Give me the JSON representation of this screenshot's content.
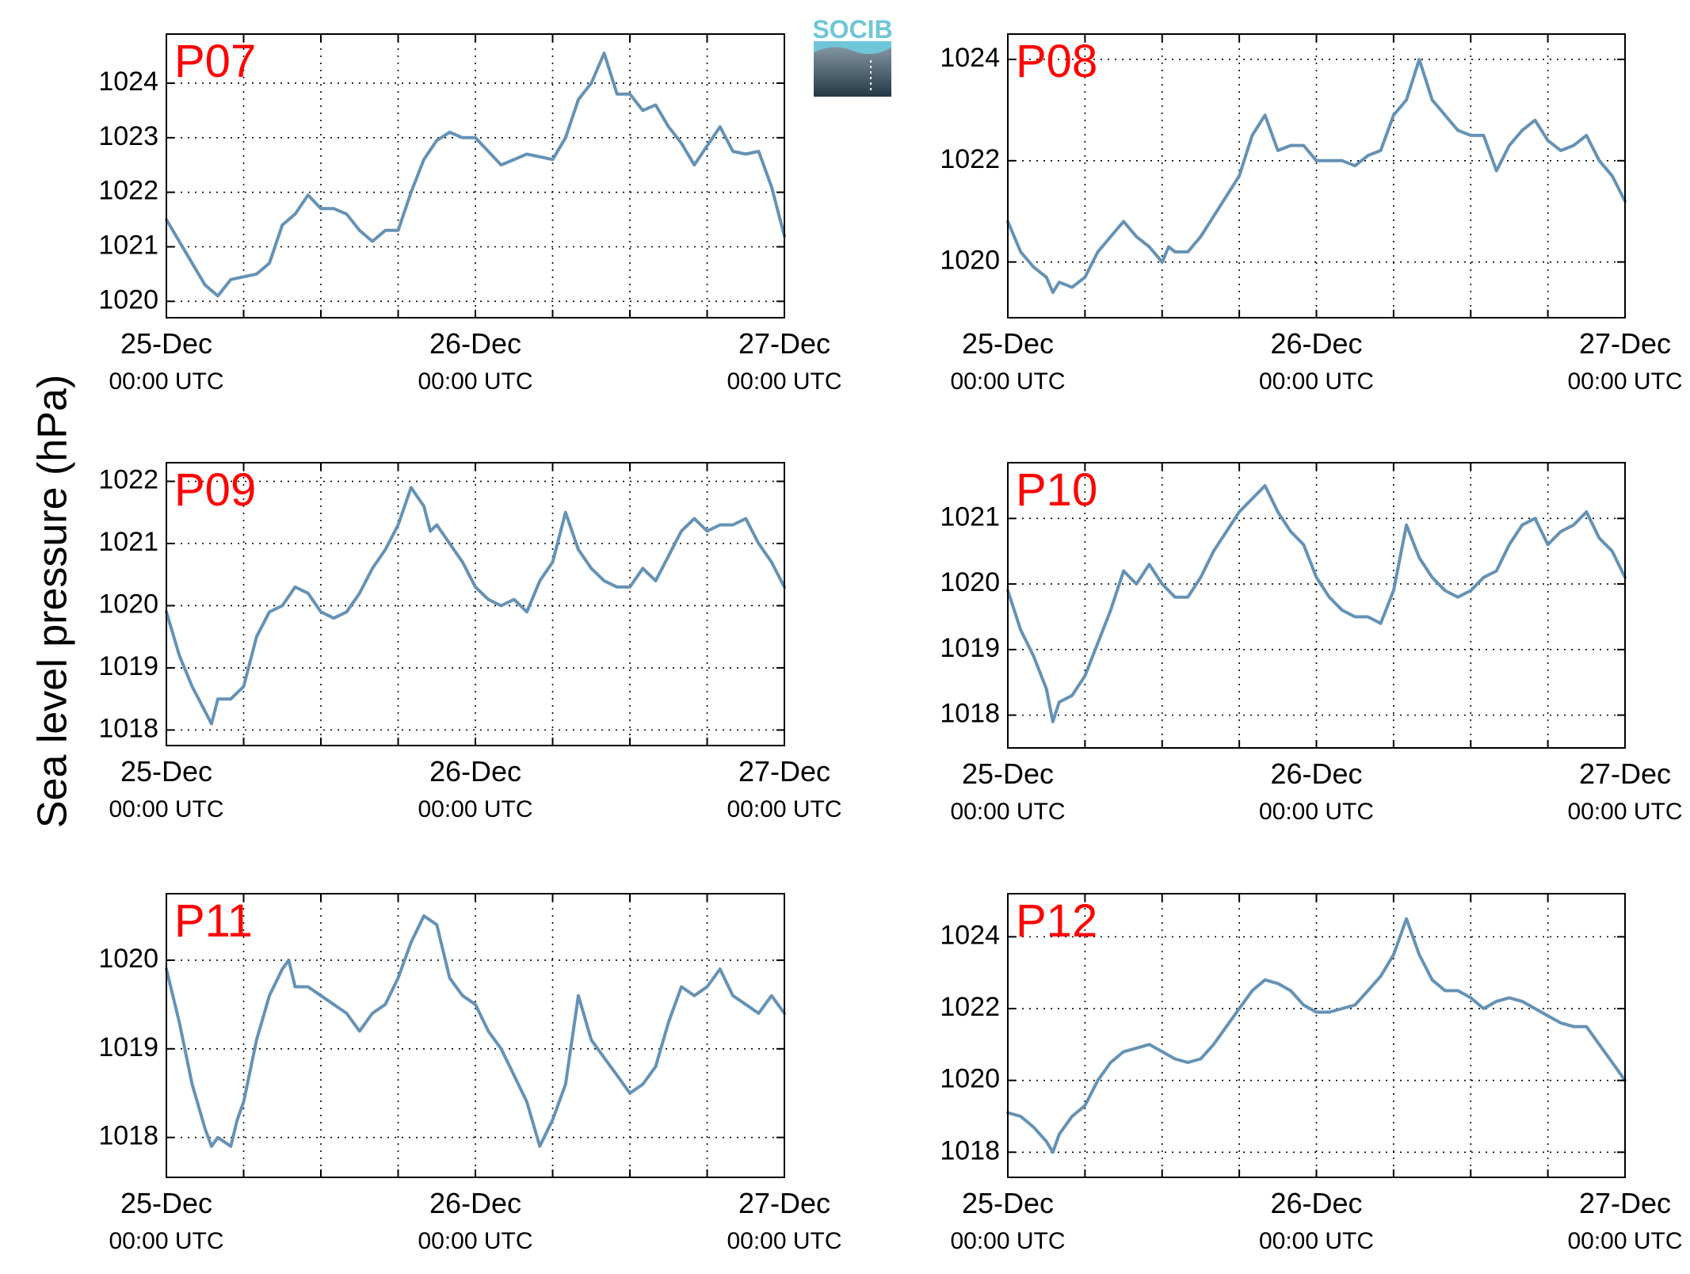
{
  "figure": {
    "ylabel": "Sea level pressure (hPa)",
    "logo_text": "SOCIB",
    "line_color": "#6592b5",
    "label_color": "#ff0000",
    "grid": "dotted"
  },
  "chart_data": [
    {
      "type": "line",
      "title": "P07",
      "x_ticks": [
        "25-Dec 00:00 UTC",
        "26-Dec 00:00 UTC",
        "27-Dec 00:00 UTC"
      ],
      "xlim": [
        "25-Dec 00:00",
        "27-Dec 00:00"
      ],
      "y_ticks": [
        1020,
        1021,
        1022,
        1023,
        1024
      ],
      "ylim": [
        1019.7,
        1024.9
      ],
      "series": [
        {
          "x": [
            0,
            2,
            3,
            4,
            5,
            7,
            8,
            9,
            10,
            11,
            12,
            13,
            14,
            15,
            16,
            17,
            18,
            19,
            20,
            21,
            22,
            23,
            24,
            26,
            28,
            29,
            30,
            31,
            32,
            33,
            34,
            35,
            36,
            37,
            38,
            39,
            40,
            41,
            42,
            43,
            44,
            45,
            46,
            47,
            48
          ],
          "values": [
            1021.5,
            1020.7,
            1020.3,
            1020.1,
            1020.4,
            1020.5,
            1020.7,
            1021.4,
            1021.6,
            1021.95,
            1021.7,
            1021.7,
            1021.6,
            1021.3,
            1021.1,
            1021.3,
            1021.3,
            1022.0,
            1022.6,
            1022.95,
            1023.1,
            1023.0,
            1023.0,
            1022.5,
            1022.7,
            1022.65,
            1022.6,
            1023.0,
            1023.7,
            1024.0,
            1024.55,
            1023.8,
            1023.8,
            1023.5,
            1023.6,
            1023.2,
            1022.9,
            1022.5,
            1022.85,
            1023.2,
            1022.75,
            1022.7,
            1022.75,
            1022.1,
            1021.2
          ]
        }
      ]
    },
    {
      "type": "line",
      "title": "P08",
      "x_ticks": [
        "25-Dec 00:00 UTC",
        "26-Dec 00:00 UTC",
        "27-Dec 00:00 UTC"
      ],
      "xlim": [
        "25-Dec 00:00",
        "27-Dec 00:00"
      ],
      "y_ticks": [
        1020,
        1022,
        1024
      ],
      "ylim": [
        1018.9,
        1024.5
      ],
      "series": [
        {
          "x": [
            0,
            1,
            2,
            3,
            3.5,
            4,
            5,
            6,
            7,
            8,
            9,
            10,
            11,
            12,
            12.5,
            13,
            14,
            15,
            16,
            17,
            18,
            19,
            20,
            21,
            22,
            23,
            24,
            25,
            26,
            27,
            28,
            29,
            30,
            31,
            32,
            33,
            34,
            35,
            36,
            37,
            38,
            39,
            40,
            41,
            42,
            43,
            44,
            45,
            46,
            47,
            48
          ],
          "values": [
            1020.8,
            1020.2,
            1019.9,
            1019.7,
            1019.4,
            1019.6,
            1019.5,
            1019.7,
            1020.2,
            1020.5,
            1020.8,
            1020.5,
            1020.3,
            1020.0,
            1020.3,
            1020.2,
            1020.2,
            1020.5,
            1020.9,
            1021.3,
            1021.7,
            1022.5,
            1022.9,
            1022.2,
            1022.3,
            1022.3,
            1022.0,
            1022.0,
            1022.0,
            1021.9,
            1022.1,
            1022.2,
            1022.9,
            1023.2,
            1024.0,
            1023.2,
            1022.9,
            1022.6,
            1022.5,
            1022.5,
            1021.8,
            1022.3,
            1022.6,
            1022.8,
            1022.4,
            1022.2,
            1022.3,
            1022.5,
            1022.0,
            1021.7,
            1021.2
          ]
        }
      ]
    },
    {
      "type": "line",
      "title": "P09",
      "x_ticks": [
        "25-Dec 00:00 UTC",
        "26-Dec 00:00 UTC",
        "27-Dec 00:00 UTC"
      ],
      "xlim": [
        "25-Dec 00:00",
        "27-Dec 00:00"
      ],
      "y_ticks": [
        1018,
        1019,
        1020,
        1021,
        1022
      ],
      "ylim": [
        1017.75,
        1022.3
      ],
      "series": [
        {
          "x": [
            0,
            1,
            2,
            3,
            3.5,
            4,
            5,
            6,
            7,
            8,
            9,
            10,
            11,
            12,
            13,
            14,
            15,
            16,
            17,
            18,
            19,
            20,
            20.5,
            21,
            22,
            23,
            24,
            25,
            26,
            27,
            28,
            29,
            30,
            31,
            32,
            33,
            34,
            35,
            36,
            37,
            38,
            39,
            40,
            41,
            42,
            43,
            44,
            45,
            46,
            47,
            48
          ],
          "values": [
            1019.9,
            1019.2,
            1018.7,
            1018.3,
            1018.1,
            1018.5,
            1018.5,
            1018.7,
            1019.5,
            1019.9,
            1020.0,
            1020.3,
            1020.2,
            1019.9,
            1019.8,
            1019.9,
            1020.2,
            1020.6,
            1020.9,
            1021.3,
            1021.9,
            1021.6,
            1021.2,
            1021.3,
            1021.0,
            1020.7,
            1020.3,
            1020.1,
            1020.0,
            1020.1,
            1019.9,
            1020.4,
            1020.7,
            1021.5,
            1020.9,
            1020.6,
            1020.4,
            1020.3,
            1020.3,
            1020.6,
            1020.4,
            1020.8,
            1021.2,
            1021.4,
            1021.2,
            1021.3,
            1021.3,
            1021.4,
            1021.0,
            1020.7,
            1020.3
          ]
        }
      ]
    },
    {
      "type": "line",
      "title": "P10",
      "x_ticks": [
        "25-Dec 00:00 UTC",
        "26-Dec 00:00 UTC",
        "27-Dec 00:00 UTC"
      ],
      "xlim": [
        "25-Dec 00:00",
        "27-Dec 00:00"
      ],
      "y_ticks": [
        1018,
        1019,
        1020,
        1021
      ],
      "ylim": [
        1017.5,
        1021.85
      ],
      "series": [
        {
          "x": [
            0,
            1,
            2,
            3,
            3.5,
            4,
            5,
            6,
            7,
            8,
            9,
            10,
            11,
            12,
            13,
            14,
            15,
            16,
            17,
            18,
            19,
            20,
            21,
            22,
            23,
            24,
            25,
            26,
            27,
            28,
            29,
            30,
            31,
            32,
            33,
            34,
            35,
            36,
            37,
            38,
            39,
            40,
            41,
            42,
            43,
            44,
            45,
            46,
            47,
            48
          ],
          "values": [
            1019.9,
            1019.3,
            1018.9,
            1018.4,
            1017.9,
            1018.2,
            1018.3,
            1018.6,
            1019.1,
            1019.6,
            1020.2,
            1020.0,
            1020.3,
            1020.0,
            1019.8,
            1019.8,
            1020.1,
            1020.5,
            1020.8,
            1021.1,
            1021.3,
            1021.5,
            1021.1,
            1020.8,
            1020.6,
            1020.1,
            1019.8,
            1019.6,
            1019.5,
            1019.5,
            1019.4,
            1019.9,
            1020.9,
            1020.4,
            1020.1,
            1019.9,
            1019.8,
            1019.9,
            1020.1,
            1020.2,
            1020.6,
            1020.9,
            1021.0,
            1020.6,
            1020.8,
            1020.9,
            1021.1,
            1020.7,
            1020.5,
            1020.1
          ]
        }
      ]
    },
    {
      "type": "line",
      "title": "P11",
      "x_ticks": [
        "25-Dec 00:00 UTC",
        "26-Dec 00:00 UTC",
        "27-Dec 00:00 UTC"
      ],
      "xlim": [
        "25-Dec 00:00",
        "27-Dec 00:00"
      ],
      "y_ticks": [
        1018,
        1019,
        1020
      ],
      "ylim": [
        1017.55,
        1020.75
      ],
      "series": [
        {
          "x": [
            0,
            1,
            2,
            3,
            3.5,
            4,
            5,
            5.5,
            6,
            7,
            8,
            9,
            9.5,
            10,
            11,
            12,
            13,
            14,
            15,
            16,
            17,
            18,
            19,
            20,
            21,
            22,
            23,
            24,
            25,
            26,
            27,
            28,
            29,
            30,
            31,
            32,
            33,
            34,
            35,
            36,
            37,
            38,
            39,
            40,
            41,
            42,
            43,
            44,
            45,
            46,
            47,
            48
          ],
          "values": [
            1019.9,
            1019.3,
            1018.6,
            1018.1,
            1017.9,
            1018.0,
            1017.9,
            1018.2,
            1018.4,
            1019.1,
            1019.6,
            1019.9,
            1020.0,
            1019.7,
            1019.7,
            1019.6,
            1019.5,
            1019.4,
            1019.2,
            1019.4,
            1019.5,
            1019.8,
            1020.2,
            1020.5,
            1020.4,
            1019.8,
            1019.6,
            1019.5,
            1019.2,
            1019.0,
            1018.7,
            1018.4,
            1017.9,
            1018.2,
            1018.6,
            1019.6,
            1019.1,
            1018.9,
            1018.7,
            1018.5,
            1018.6,
            1018.8,
            1019.3,
            1019.7,
            1019.6,
            1019.7,
            1019.9,
            1019.6,
            1019.5,
            1019.4,
            1019.6,
            1019.4
          ]
        }
      ]
    },
    {
      "type": "line",
      "title": "P12",
      "x_ticks": [
        "25-Dec 00:00 UTC",
        "26-Dec 00:00 UTC",
        "27-Dec 00:00 UTC"
      ],
      "xlim": [
        "25-Dec 00:00",
        "27-Dec 00:00"
      ],
      "y_ticks": [
        1018,
        1020,
        1022,
        1024
      ],
      "ylim": [
        1017.3,
        1025.2
      ],
      "series": [
        {
          "x": [
            0,
            1,
            2,
            3,
            3.5,
            4,
            5,
            6,
            7,
            8,
            9,
            10,
            11,
            12,
            13,
            14,
            15,
            16,
            17,
            18,
            19,
            20,
            21,
            22,
            23,
            24,
            25,
            26,
            27,
            28,
            29,
            30,
            31,
            32,
            33,
            34,
            35,
            36,
            37,
            38,
            39,
            40,
            41,
            42,
            43,
            44,
            45,
            46,
            47,
            48
          ],
          "values": [
            1019.1,
            1019.0,
            1018.7,
            1018.3,
            1018.0,
            1018.5,
            1019.0,
            1019.3,
            1020.0,
            1020.5,
            1020.8,
            1020.9,
            1021.0,
            1020.8,
            1020.6,
            1020.5,
            1020.6,
            1021.0,
            1021.5,
            1022.0,
            1022.5,
            1022.8,
            1022.7,
            1022.5,
            1022.1,
            1021.9,
            1021.9,
            1022.0,
            1022.1,
            1022.5,
            1022.9,
            1023.5,
            1024.5,
            1023.5,
            1022.8,
            1022.5,
            1022.5,
            1022.3,
            1022.0,
            1022.2,
            1022.3,
            1022.2,
            1022.0,
            1021.8,
            1021.6,
            1021.5,
            1021.5,
            1021.0,
            1020.5,
            1020.0
          ]
        }
      ]
    }
  ]
}
